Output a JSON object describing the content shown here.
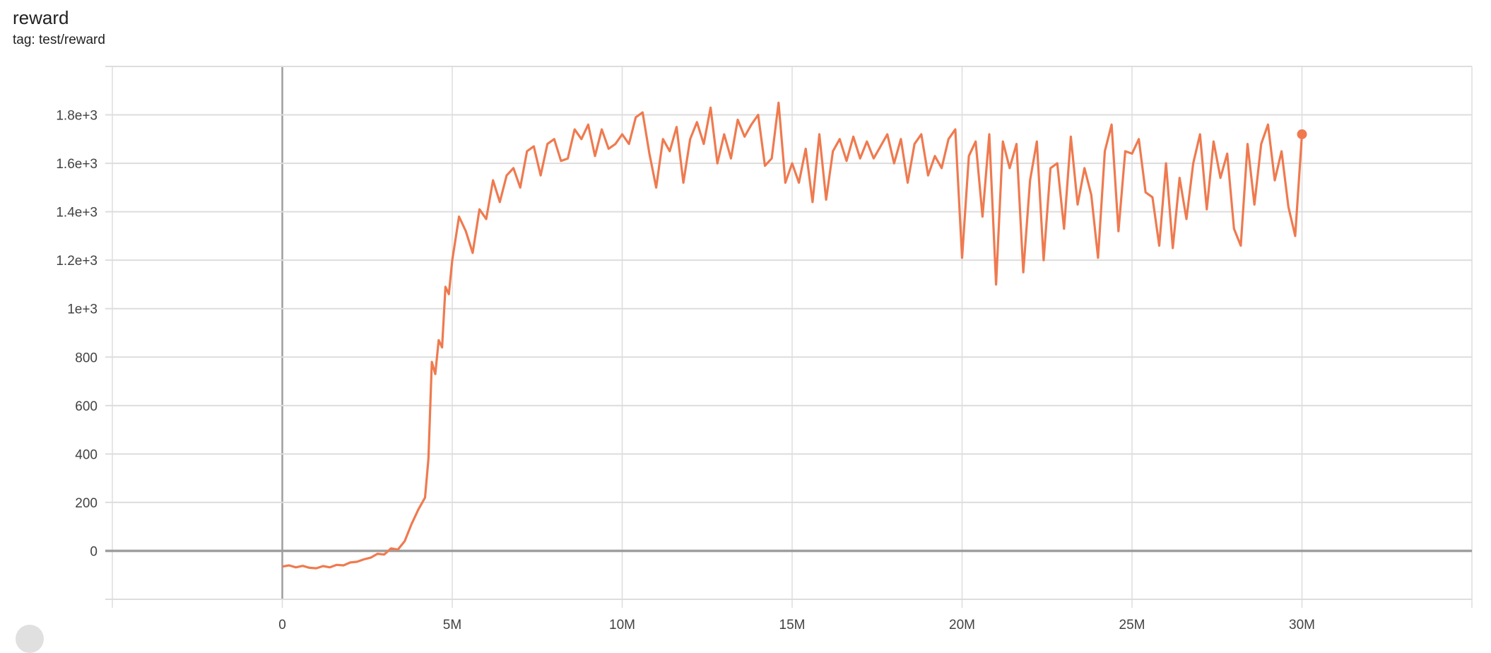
{
  "card": {
    "title": "reward",
    "subtitle": "tag: test/reward"
  },
  "colors": {
    "series": "#ef7a4f",
    "grid": "#dddddd",
    "axis": "#9e9e9e"
  },
  "chart_data": {
    "type": "line",
    "title": "reward",
    "subtitle": "tag: test/reward",
    "xlabel": "",
    "ylabel": "",
    "xlim": [
      -5000000,
      35000000
    ],
    "ylim": [
      -200,
      2000
    ],
    "grid": true,
    "x_ticks": [
      {
        "value": 0,
        "label": "0"
      },
      {
        "value": 5000000,
        "label": "5M"
      },
      {
        "value": 10000000,
        "label": "10M"
      },
      {
        "value": 15000000,
        "label": "15M"
      },
      {
        "value": 20000000,
        "label": "20M"
      },
      {
        "value": 25000000,
        "label": "25M"
      },
      {
        "value": 30000000,
        "label": "30M"
      }
    ],
    "y_ticks": [
      {
        "value": 0,
        "label": "0"
      },
      {
        "value": 200,
        "label": "200"
      },
      {
        "value": 400,
        "label": "400"
      },
      {
        "value": 600,
        "label": "600"
      },
      {
        "value": 800,
        "label": "800"
      },
      {
        "value": 1000,
        "label": "1e+3"
      },
      {
        "value": 1200,
        "label": "1.2e+3"
      },
      {
        "value": 1400,
        "label": "1.4e+3"
      },
      {
        "value": 1600,
        "label": "1.6e+3"
      },
      {
        "value": 1800,
        "label": "1.8e+3"
      }
    ],
    "series": [
      {
        "color": "#ef7a4f",
        "points": [
          [
            0,
            -65
          ],
          [
            200000.0,
            -60
          ],
          [
            400000.0,
            -68
          ],
          [
            600000.0,
            -62
          ],
          [
            800000.0,
            -70
          ],
          [
            1000000.0,
            -72
          ],
          [
            1200000.0,
            -63
          ],
          [
            1400000.0,
            -68
          ],
          [
            1600000.0,
            -58
          ],
          [
            1800000.0,
            -60
          ],
          [
            2000000.0,
            -48
          ],
          [
            2200000.0,
            -45
          ],
          [
            2400000.0,
            -35
          ],
          [
            2600000.0,
            -28
          ],
          [
            2800000.0,
            -12
          ],
          [
            3000000.0,
            -15
          ],
          [
            3200000.0,
            10
          ],
          [
            3400000.0,
            5
          ],
          [
            3600000.0,
            40
          ],
          [
            3800000.0,
            110
          ],
          [
            4000000.0,
            170
          ],
          [
            4200000.0,
            220
          ],
          [
            4300000.0,
            380
          ],
          [
            4400000.0,
            780
          ],
          [
            4500000.0,
            730
          ],
          [
            4600000.0,
            870
          ],
          [
            4700000.0,
            840
          ],
          [
            4800000.0,
            1090
          ],
          [
            4900000.0,
            1060
          ],
          [
            5000000.0,
            1200
          ],
          [
            5200000.0,
            1380
          ],
          [
            5400000.0,
            1320
          ],
          [
            5600000.0,
            1230
          ],
          [
            5800000.0,
            1410
          ],
          [
            6000000.0,
            1370
          ],
          [
            6200000.0,
            1530
          ],
          [
            6400000.0,
            1440
          ],
          [
            6600000.0,
            1550
          ],
          [
            6800000.0,
            1580
          ],
          [
            7000000.0,
            1500
          ],
          [
            7200000.0,
            1650
          ],
          [
            7400000.0,
            1670
          ],
          [
            7600000.0,
            1550
          ],
          [
            7800000.0,
            1680
          ],
          [
            8000000.0,
            1700
          ],
          [
            8200000.0,
            1610
          ],
          [
            8400000.0,
            1620
          ],
          [
            8600000.0,
            1740
          ],
          [
            8800000.0,
            1700
          ],
          [
            9000000.0,
            1760
          ],
          [
            9200000.0,
            1630
          ],
          [
            9400000.0,
            1740
          ],
          [
            9600000.0,
            1660
          ],
          [
            9800000.0,
            1680
          ],
          [
            10000000.0,
            1720
          ],
          [
            10200000.0,
            1680
          ],
          [
            10400000.0,
            1790
          ],
          [
            10600000.0,
            1810
          ],
          [
            10800000.0,
            1640
          ],
          [
            11000000.0,
            1500
          ],
          [
            11200000.0,
            1700
          ],
          [
            11400000.0,
            1650
          ],
          [
            11600000.0,
            1750
          ],
          [
            11800000.0,
            1520
          ],
          [
            12000000.0,
            1700
          ],
          [
            12200000.0,
            1770
          ],
          [
            12400000.0,
            1680
          ],
          [
            12600000.0,
            1830
          ],
          [
            12800000.0,
            1600
          ],
          [
            13000000.0,
            1720
          ],
          [
            13200000.0,
            1620
          ],
          [
            13400000.0,
            1780
          ],
          [
            13600000.0,
            1710
          ],
          [
            13800000.0,
            1760
          ],
          [
            14000000.0,
            1800
          ],
          [
            14200000.0,
            1590
          ],
          [
            14400000.0,
            1620
          ],
          [
            14600000.0,
            1850
          ],
          [
            14800000.0,
            1520
          ],
          [
            15000000.0,
            1600
          ],
          [
            15200000.0,
            1520
          ],
          [
            15400000.0,
            1660
          ],
          [
            15600000.0,
            1440
          ],
          [
            15800000.0,
            1720
          ],
          [
            16000000.0,
            1450
          ],
          [
            16200000.0,
            1650
          ],
          [
            16400000.0,
            1700
          ],
          [
            16600000.0,
            1610
          ],
          [
            16800000.0,
            1710
          ],
          [
            17000000.0,
            1620
          ],
          [
            17200000.0,
            1690
          ],
          [
            17400000.0,
            1620
          ],
          [
            17600000.0,
            1670
          ],
          [
            17800000.0,
            1720
          ],
          [
            18000000.0,
            1600
          ],
          [
            18200000.0,
            1700
          ],
          [
            18400000.0,
            1520
          ],
          [
            18600000.0,
            1680
          ],
          [
            18800000.0,
            1720
          ],
          [
            19000000.0,
            1550
          ],
          [
            19200000.0,
            1630
          ],
          [
            19400000.0,
            1580
          ],
          [
            19600000.0,
            1700
          ],
          [
            19800000.0,
            1740
          ],
          [
            20000000.0,
            1210
          ],
          [
            20200000.0,
            1630
          ],
          [
            20400000.0,
            1690
          ],
          [
            20600000.0,
            1380
          ],
          [
            20800000.0,
            1720
          ],
          [
            21000000.0,
            1100
          ],
          [
            21200000.0,
            1690
          ],
          [
            21400000.0,
            1580
          ],
          [
            21600000.0,
            1680
          ],
          [
            21800000.0,
            1150
          ],
          [
            22000000.0,
            1530
          ],
          [
            22200000.0,
            1690
          ],
          [
            22400000.0,
            1200
          ],
          [
            22600000.0,
            1580
          ],
          [
            22800000.0,
            1600
          ],
          [
            23000000.0,
            1330
          ],
          [
            23200000.0,
            1710
          ],
          [
            23400000.0,
            1430
          ],
          [
            23600000.0,
            1580
          ],
          [
            23800000.0,
            1470
          ],
          [
            24000000.0,
            1210
          ],
          [
            24200000.0,
            1650
          ],
          [
            24400000.0,
            1760
          ],
          [
            24600000.0,
            1320
          ],
          [
            24800000.0,
            1650
          ],
          [
            25000000.0,
            1640
          ],
          [
            25200000.0,
            1700
          ],
          [
            25400000.0,
            1480
          ],
          [
            25600000.0,
            1460
          ],
          [
            25800000.0,
            1260
          ],
          [
            26000000.0,
            1600
          ],
          [
            26200000.0,
            1250
          ],
          [
            26400000.0,
            1540
          ],
          [
            26600000.0,
            1370
          ],
          [
            26800000.0,
            1600
          ],
          [
            27000000.0,
            1720
          ],
          [
            27200000.0,
            1410
          ],
          [
            27400000.0,
            1690
          ],
          [
            27600000.0,
            1540
          ],
          [
            27800000.0,
            1640
          ],
          [
            28000000.0,
            1330
          ],
          [
            28200000.0,
            1260
          ],
          [
            28400000.0,
            1680
          ],
          [
            28600000.0,
            1430
          ],
          [
            28800000.0,
            1680
          ],
          [
            29000000.0,
            1760
          ],
          [
            29200000.0,
            1530
          ],
          [
            29400000.0,
            1650
          ],
          [
            29600000.0,
            1420
          ],
          [
            29800000.0,
            1300
          ],
          [
            30000000.0,
            1720
          ]
        ]
      }
    ]
  }
}
